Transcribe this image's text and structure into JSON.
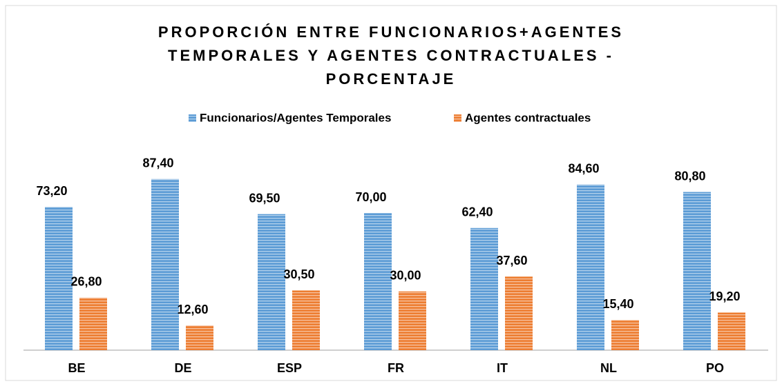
{
  "chart_data": {
    "type": "bar",
    "title": [
      "PROPORCIÓN ENTRE FUNCIONARIOS+AGENTES",
      "TEMPORALES Y AGENTES CONTRACTUALES -",
      "PORCENTAJE"
    ],
    "categories": [
      "BE",
      "DE",
      "ESP",
      "FR",
      "IT",
      "NL",
      "PO"
    ],
    "series": [
      {
        "name": "Funcionarios/Agentes Temporales",
        "color": "#5b9bd5",
        "values": [
          73.2,
          87.4,
          69.5,
          70.0,
          62.4,
          84.6,
          80.8
        ],
        "value_labels": [
          "73,20",
          "87,40",
          "69,50",
          "70,00",
          "62,40",
          "84,60",
          "80,80"
        ]
      },
      {
        "name": "Agentes contractuales",
        "color": "#ed7d31",
        "values": [
          26.8,
          12.6,
          30.5,
          30.0,
          37.6,
          15.4,
          19.2
        ],
        "value_labels": [
          "26,80",
          "12,60",
          "30,50",
          "30,00",
          "37,60",
          "15,40",
          "19,20"
        ]
      }
    ],
    "legend": "top"
  }
}
